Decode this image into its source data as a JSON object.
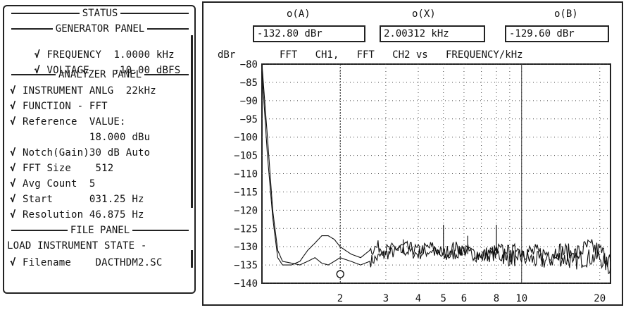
{
  "status": {
    "title": "STATUS",
    "generator": {
      "title": "GENERATOR PANEL",
      "rows": [
        {
          "check": "√",
          "label": "FREQUENCY",
          "value": "1.0000 kHz"
        },
        {
          "check": "√",
          "label": "VOLTAGE",
          "value": "-10.00 dBFS"
        }
      ]
    },
    "analyzer": {
      "title": "ANALYZER PANEL",
      "rows": [
        {
          "check": "√",
          "text": "INSTRUMENT ANLG  22kHz"
        },
        {
          "check": "√",
          "text": "FUNCTION - FFT"
        },
        {
          "check": "√",
          "text": "Reference  VALUE:"
        },
        {
          "check": "",
          "text": "           18.000 dBu"
        },
        {
          "check": "√",
          "text": "Notch(Gain)30 dB Auto"
        },
        {
          "check": "√",
          "text": "FFT Size    512"
        },
        {
          "check": "√",
          "text": "Avg Count  5"
        },
        {
          "check": "√",
          "text": "Start      031.25 Hz"
        },
        {
          "check": "√",
          "text": "Resolution 46.875 Hz"
        }
      ]
    },
    "file": {
      "title": "FILE PANEL",
      "load": "LOAD INSTRUMENT STATE -",
      "filename_row": {
        "check": "√",
        "text": "Filename    DACTHDM2.SC"
      }
    }
  },
  "graph": {
    "readouts": [
      {
        "label": "o(A)",
        "value": "-132.80 dBr"
      },
      {
        "label": "o(X)",
        "value": "2.00312 kHz"
      },
      {
        "label": "o(B)",
        "value": "-129.60 dBr"
      }
    ],
    "unit_label": "dBr",
    "header": "FFT   CH1,   FFT   CH2 vs   FREQUENCY/kHz"
  },
  "chart_data": {
    "type": "line",
    "title": "FFT CH1, FFT CH2 vs FREQUENCY/kHz",
    "ylabel": "dBr",
    "xlabel": "FREQUENCY/kHz",
    "x_scale": "log",
    "ylim": [
      -140,
      -80
    ],
    "xlim": [
      1.0,
      22.0
    ],
    "yticks": [
      -80,
      -85,
      -90,
      -95,
      -100,
      -105,
      -110,
      -115,
      -120,
      -125,
      -130,
      -135,
      -140
    ],
    "xtick_labels": [
      {
        "x": 2,
        "label": "2"
      },
      {
        "x": 3,
        "label": "3"
      },
      {
        "x": 4,
        "label": "4"
      },
      {
        "x": 5,
        "label": "5"
      },
      {
        "x": 6,
        "label": "6"
      },
      {
        "x": 8,
        "label": "8"
      },
      {
        "x": 10,
        "label": "10"
      },
      {
        "x": 20,
        "label": "20"
      }
    ],
    "grid": true,
    "cursor_x": 2.00312,
    "marker": {
      "x": 2.00312,
      "y": -137.5
    },
    "series": [
      {
        "values_x": [
          1.0,
          1.05,
          1.1,
          1.15,
          1.2,
          1.3,
          1.4,
          1.5,
          1.6,
          1.7,
          1.8,
          1.9,
          2.0,
          2.2,
          2.4,
          2.6,
          2.8,
          3.0,
          3.5,
          4.0,
          4.5,
          5.0,
          5.5,
          6.0,
          7.0,
          8.0,
          9.0,
          10,
          12,
          14,
          16,
          18,
          20,
          22
        ],
        "values_y": [
          -80,
          -100,
          -120,
          -131,
          -134,
          -134.5,
          -135,
          -134,
          -133,
          -134.5,
          -135,
          -134,
          -133,
          -134,
          -135,
          -134,
          -133,
          -132,
          -131,
          -132,
          -131,
          -133,
          -132,
          -131,
          -133,
          -132,
          -133,
          -133,
          -134,
          -133,
          -134,
          -133,
          -133,
          -136
        ]
      },
      {
        "values_x": [
          1.0,
          1.05,
          1.1,
          1.15,
          1.2,
          1.3,
          1.4,
          1.5,
          1.6,
          1.7,
          1.8,
          1.9,
          2.0,
          2.2,
          2.4,
          2.6,
          2.8,
          3.0,
          3.5,
          4.0,
          4.5,
          5.0,
          5.5,
          6.0,
          7.0,
          8.0,
          9.0,
          10,
          12,
          14,
          16,
          18,
          20,
          22
        ],
        "values_y": [
          -82,
          -105,
          -122,
          -133,
          -135,
          -135,
          -134,
          -131,
          -129,
          -127,
          -127,
          -128,
          -130,
          -132,
          -133,
          -131,
          -130,
          -131,
          -130,
          -131,
          -130,
          -132,
          -130,
          -131,
          -132,
          -131,
          -132,
          -131,
          -132,
          -131,
          -132,
          -130,
          -131,
          -134
        ]
      }
    ]
  }
}
